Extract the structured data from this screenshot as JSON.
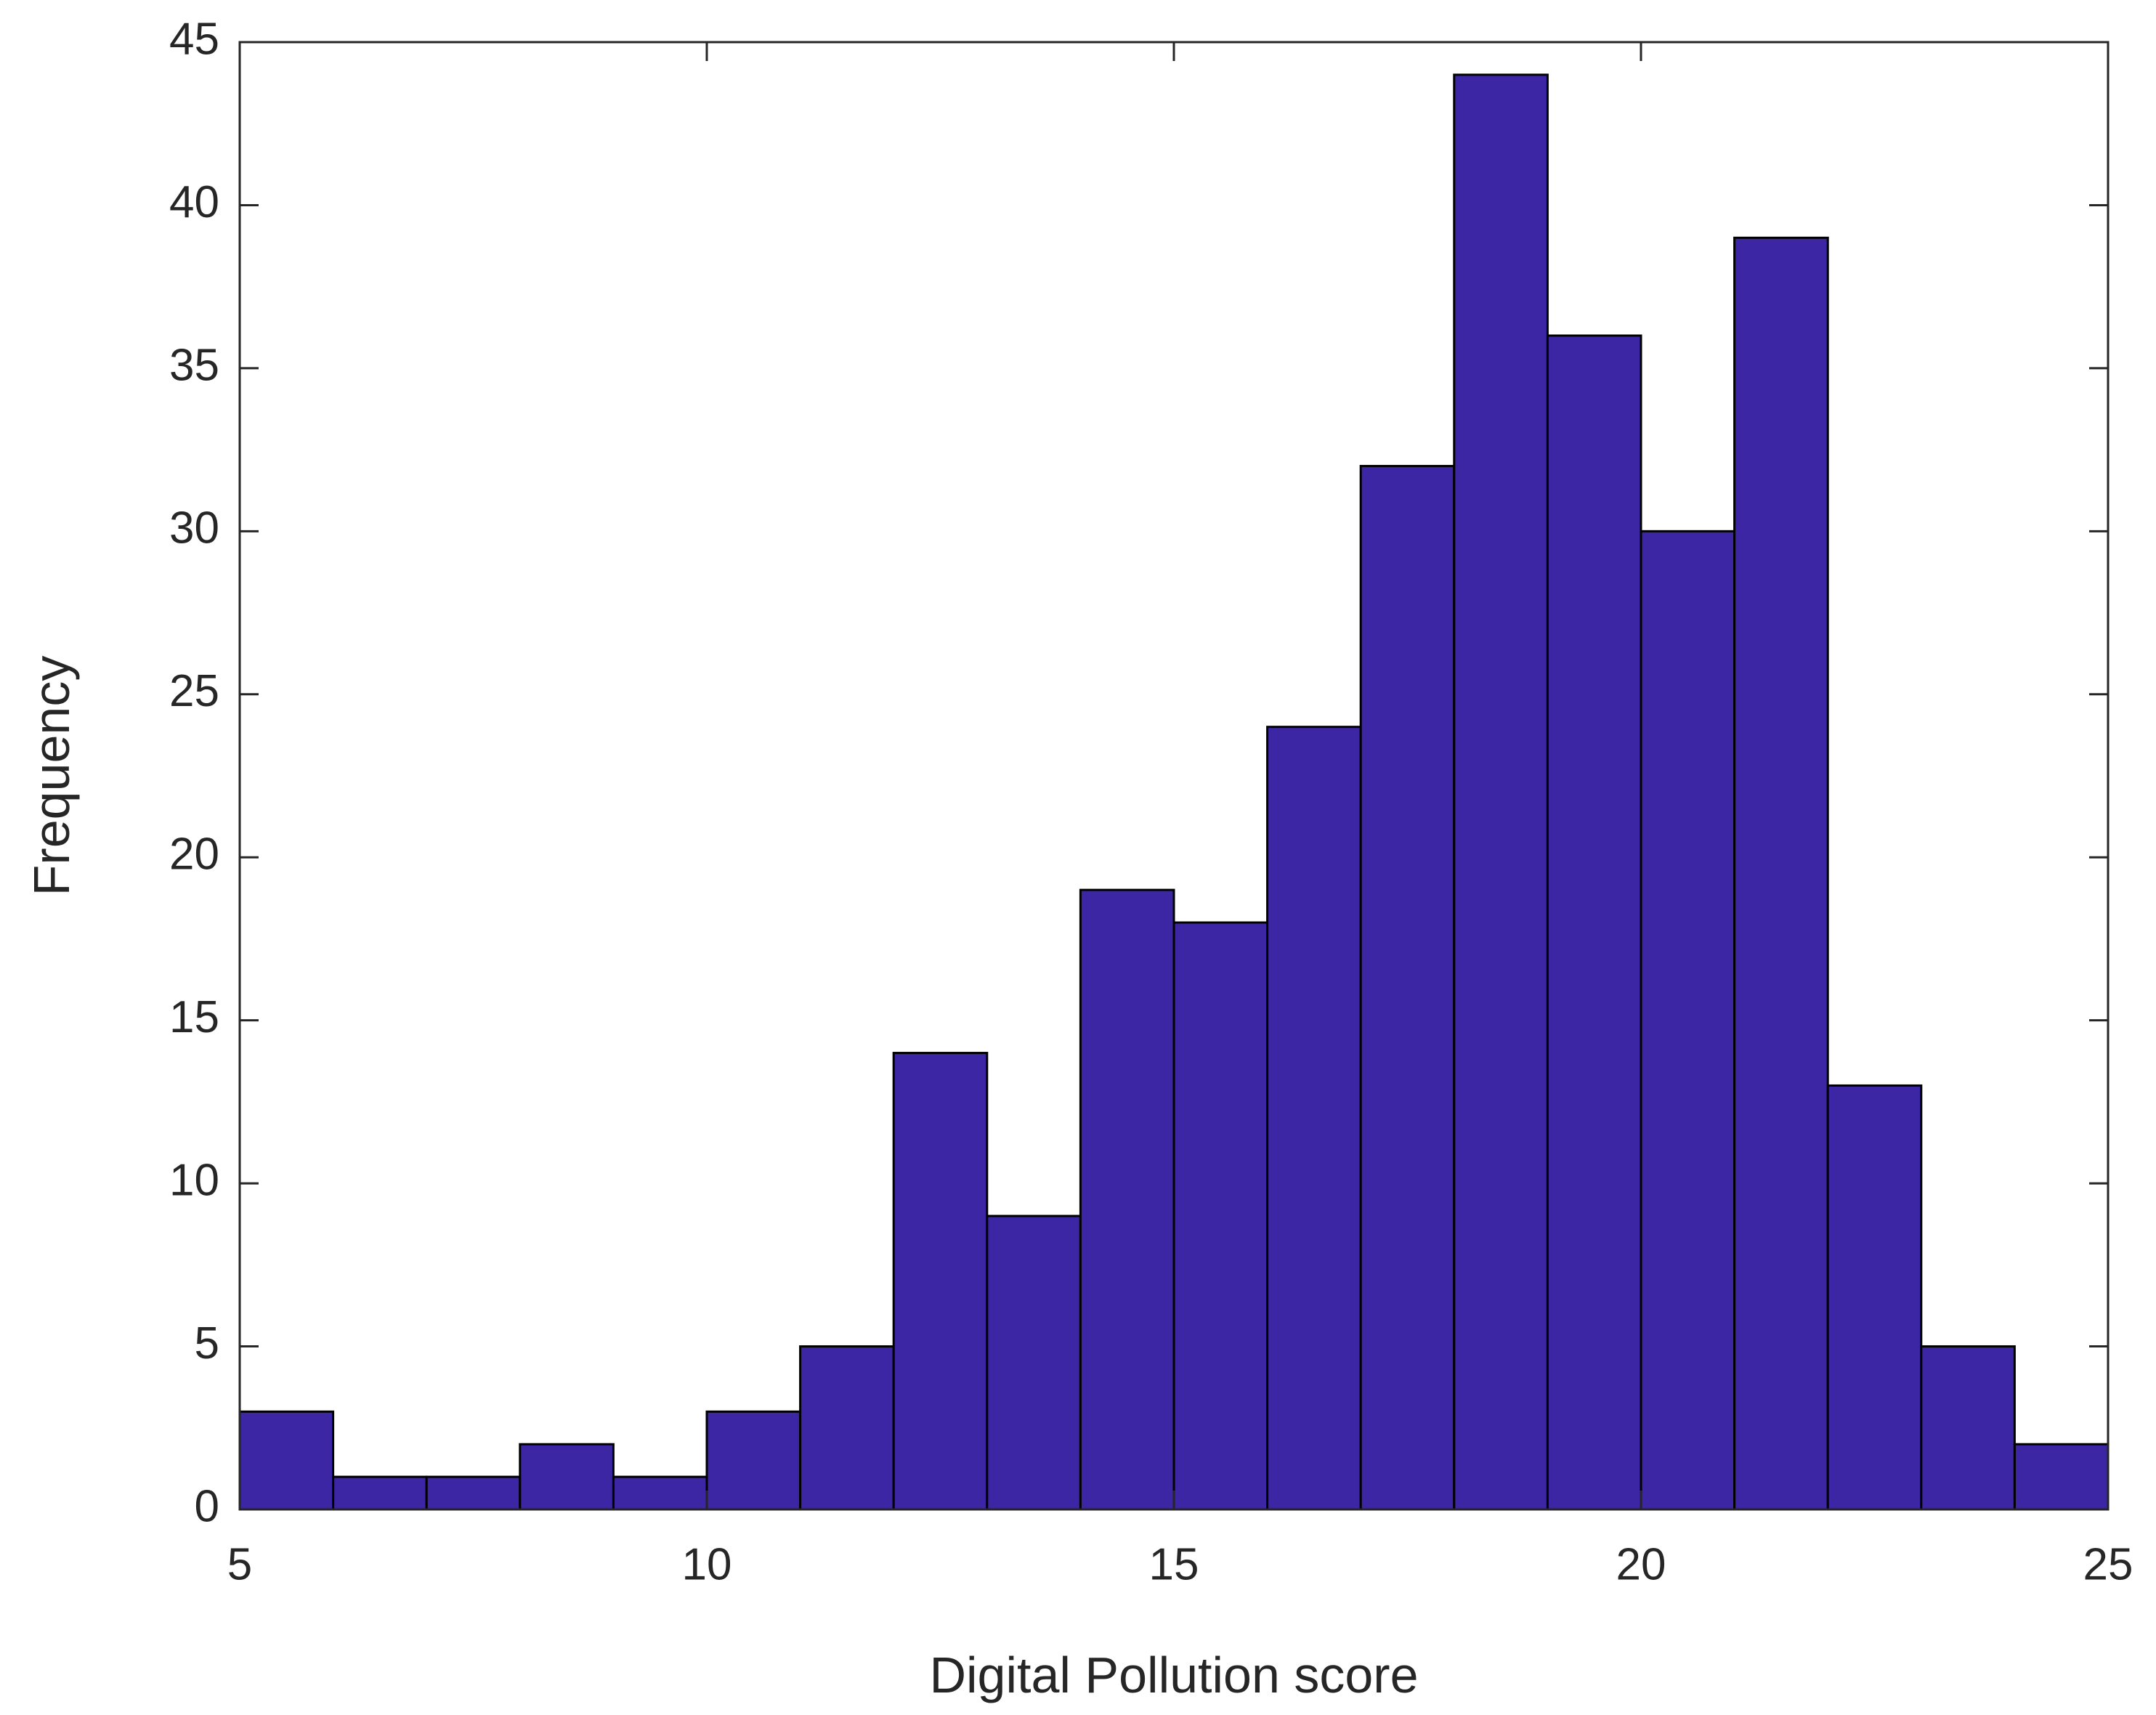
{
  "chart_data": {
    "type": "bar",
    "subtype": "histogram",
    "title": "",
    "xlabel": "Digital Pollution score",
    "ylabel": "Frequency",
    "xlim": [
      5,
      25
    ],
    "ylim": [
      0,
      45
    ],
    "xticks": [
      5,
      10,
      15,
      20,
      25
    ],
    "yticks": [
      0,
      5,
      10,
      15,
      20,
      25,
      30,
      35,
      40,
      45
    ],
    "bin_edges": [
      5,
      6,
      7,
      8,
      9,
      10,
      11,
      12,
      13,
      14,
      15,
      16,
      17,
      18,
      19,
      20,
      21,
      22,
      23,
      24,
      25
    ],
    "values": [
      3,
      1,
      1,
      2,
      1,
      3,
      5,
      14,
      9,
      19,
      18,
      24,
      32,
      44,
      36,
      30,
      39,
      13,
      5,
      2
    ],
    "bar_color": "#3c26a4",
    "edge_color": "#000000",
    "grid": false,
    "legend": "none"
  }
}
